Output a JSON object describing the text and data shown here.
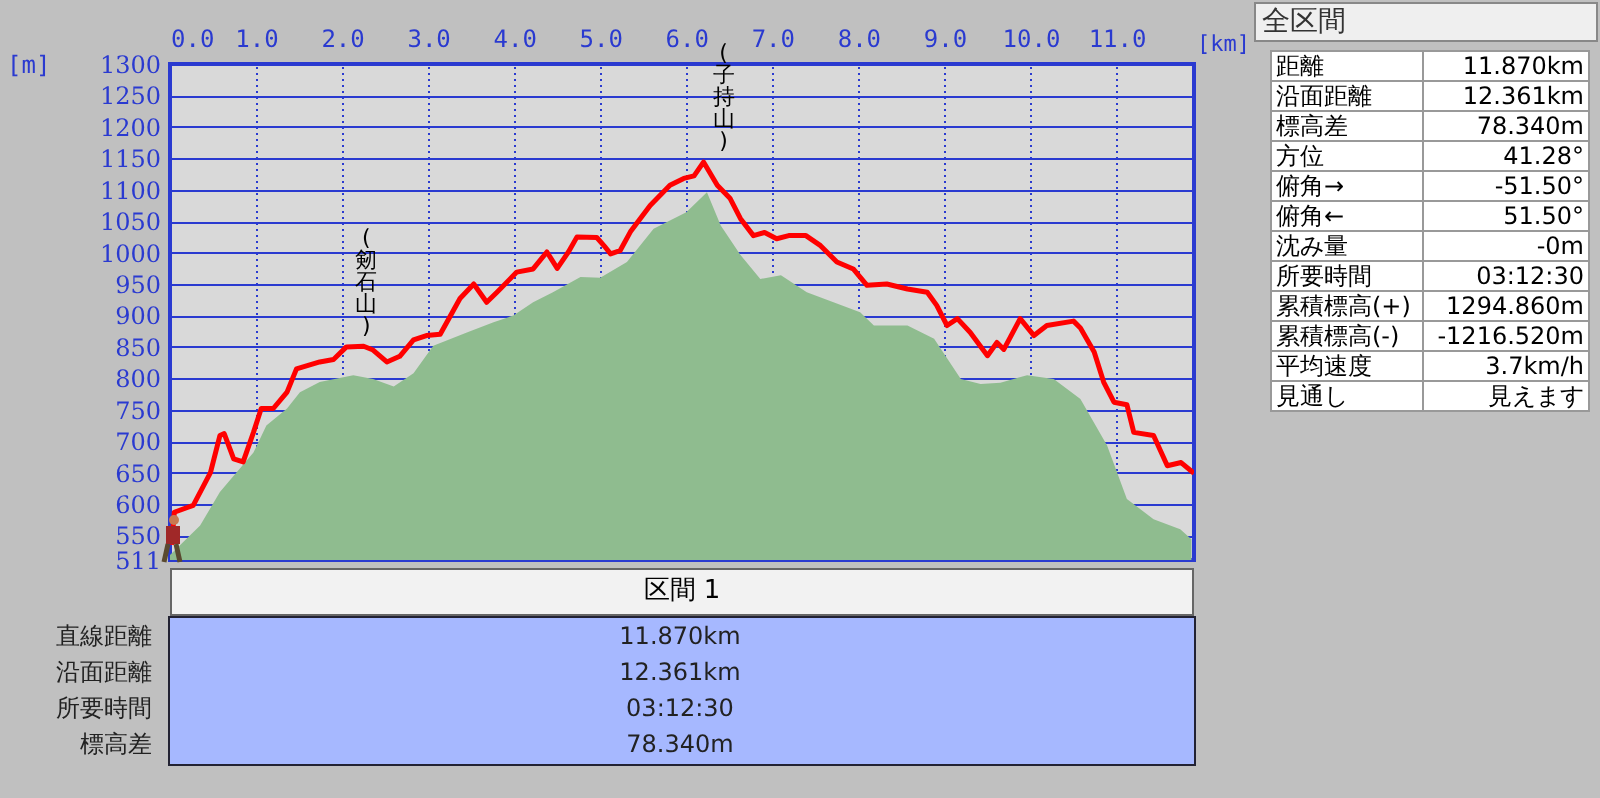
{
  "chart_data": [
    {
      "type": "line",
      "xlabel": "[km]",
      "ylabel": "[m]",
      "xlim": [
        0,
        11.9
      ],
      "ylim": [
        511,
        1300
      ],
      "xticks": [
        {
          "value": 0,
          "label": "0.0"
        },
        {
          "value": 1,
          "label": "1.0"
        },
        {
          "value": 2,
          "label": "2.0"
        },
        {
          "value": 3,
          "label": "3.0"
        },
        {
          "value": 4,
          "label": "4.0"
        },
        {
          "value": 5,
          "label": "5.0"
        },
        {
          "value": 6,
          "label": "6.0"
        },
        {
          "value": 7,
          "label": "7.0"
        },
        {
          "value": 8,
          "label": "8.0"
        },
        {
          "value": 9,
          "label": "9.0"
        },
        {
          "value": 10,
          "label": "10.0"
        },
        {
          "value": 11,
          "label": "11.0"
        }
      ],
      "yticks": [
        511,
        550,
        600,
        650,
        700,
        750,
        800,
        850,
        900,
        950,
        1000,
        1050,
        1100,
        1150,
        1200,
        1250,
        1300
      ],
      "grid": true,
      "series": [
        {
          "type": "area",
          "color": "#8fbc8f",
          "x": [
            0,
            0.35,
            0.58,
            0.97,
            1.12,
            1.36,
            1.51,
            1.74,
            2.13,
            2.36,
            2.6,
            2.83,
            3.06,
            3.45,
            3.76,
            3.99,
            4.22,
            4.45,
            4.77,
            5.0,
            5.31,
            5.62,
            6.0,
            6.24,
            6.4,
            6.63,
            6.86,
            7.1,
            7.4,
            7.71,
            8.02,
            8.18,
            8.57,
            8.88,
            9.19,
            9.42,
            9.65,
            9.96,
            10.27,
            10.58,
            10.89,
            11.12,
            11.43,
            11.74,
            11.87
          ],
          "values": [
            519,
            566,
            619,
            682,
            725,
            752,
            778,
            794,
            805,
            799,
            787,
            808,
            852,
            873,
            889,
            900,
            921,
            937,
            961,
            960,
            985,
            1038,
            1064,
            1096,
            1043,
            996,
            958,
            964,
            937,
            921,
            905,
            884,
            884,
            863,
            799,
            791,
            793,
            805,
            799,
            767,
            693,
            608,
            576,
            560,
            544
          ]
        },
        {
          "type": "line",
          "color": "#ff0000",
          "x": [
            0.02,
            0.05,
            0.27,
            0.47,
            0.58,
            0.63,
            0.74,
            0.85,
            0.97,
            1.06,
            1.2,
            1.36,
            1.47,
            1.74,
            1.9,
            2.05,
            2.25,
            2.36,
            2.52,
            2.67,
            2.83,
            2.98,
            3.14,
            3.37,
            3.53,
            3.68,
            3.8,
            4.03,
            4.22,
            4.38,
            4.5,
            4.63,
            4.73,
            4.96,
            5.05,
            5.12,
            5.23,
            5.35,
            5.58,
            5.81,
            5.97,
            6.09,
            6.2,
            6.36,
            6.51,
            6.63,
            6.78,
            6.91,
            7.05,
            7.19,
            7.39,
            7.56,
            7.75,
            7.94,
            8.1,
            8.33,
            8.57,
            8.8,
            8.91,
            9.03,
            9.15,
            9.3,
            9.5,
            9.61,
            9.69,
            9.88,
            10.04,
            10.19,
            10.5,
            10.58,
            10.74,
            10.85,
            10.97,
            11.12,
            11.2,
            11.43,
            11.59,
            11.75,
            11.9
          ],
          "values": [
            535,
            587,
            598,
            650,
            709,
            712,
            672,
            667,
            714,
            752,
            752,
            778,
            815,
            826,
            830,
            850,
            851,
            845,
            826,
            835,
            861,
            868,
            870,
            927,
            950,
            921,
            937,
            969,
            974,
            1001,
            975,
            1001,
            1025,
            1024,
            1010,
            998,
            1003,
            1033,
            1075,
            1107,
            1118,
            1122,
            1144,
            1107,
            1086,
            1054,
            1027,
            1032,
            1022,
            1027,
            1027,
            1011,
            985,
            974,
            948,
            950,
            942,
            937,
            916,
            884,
            895,
            873,
            836,
            857,
            846,
            895,
            868,
            884,
            891,
            880,
            842,
            794,
            762,
            758,
            714,
            709,
            661,
            666,
            649
          ]
        }
      ],
      "annotations": [
        {
          "text": "(剱石山)",
          "x": 2.05,
          "y": 850
        },
        {
          "text": "(子持山)",
          "x": 6.2,
          "y": 1144
        }
      ]
    },
    {
      "type": "other",
      "title": "全区間",
      "annotations": [
        "距離",
        "11.870km",
        "沿面距離",
        "12.361km",
        "標高差",
        "78.340m",
        "方位",
        "41.28°",
        "俯角→",
        "-51.50°",
        "俯角←",
        "51.50°",
        "沈み量",
        "-0m",
        "所要時間",
        "03:12:30",
        "累積標高(+)",
        "1294.860m",
        "累積標高(-)",
        "-1216.520m",
        "平均速度",
        "3.7km/h",
        "見通し",
        "見えます"
      ]
    },
    {
      "type": "other",
      "title": "区間 1",
      "annotations": [
        "直線距離",
        "11.870km",
        "沿面距離",
        "12.361km",
        "所要時間",
        "03:12:30",
        "標高差",
        "78.340m"
      ]
    }
  ]
}
